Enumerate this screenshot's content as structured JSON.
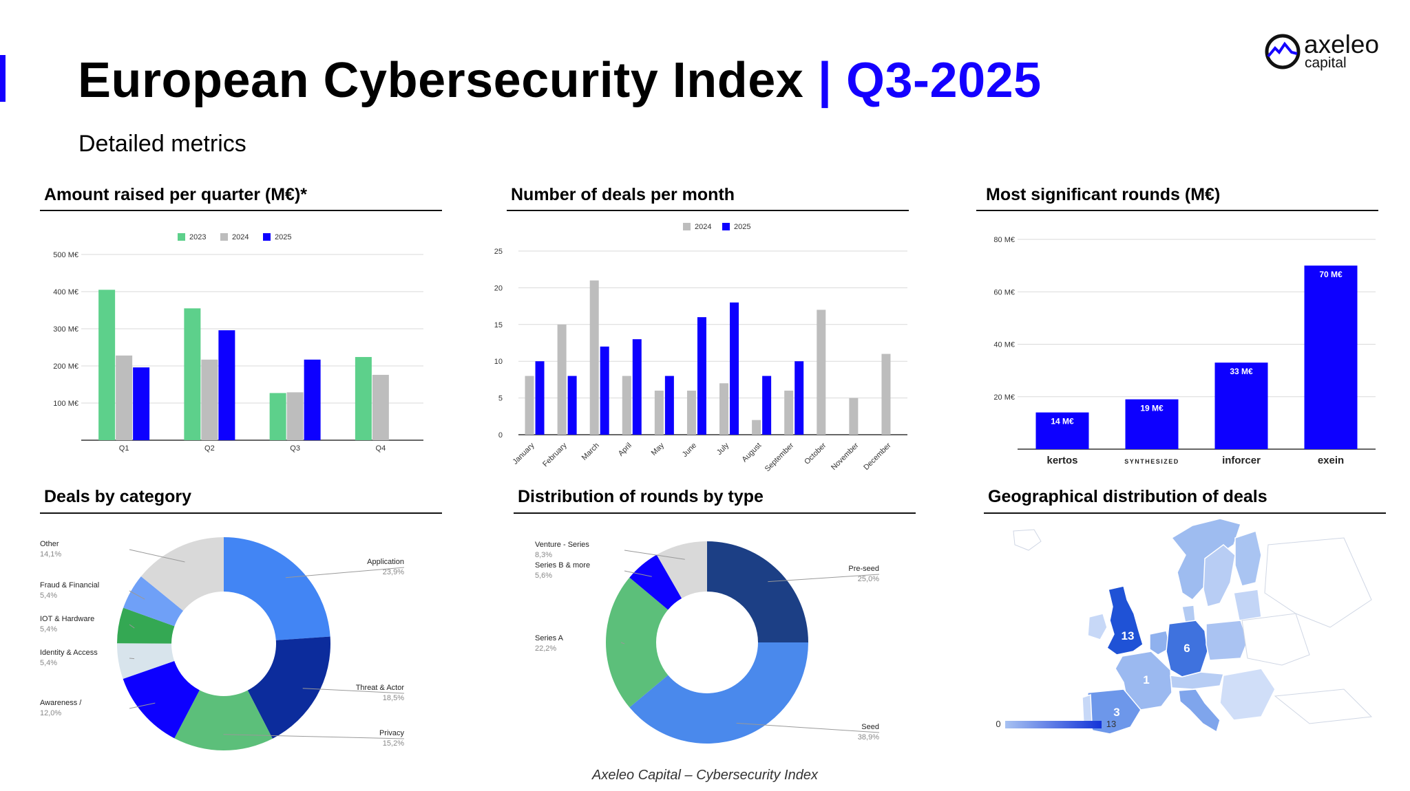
{
  "header": {
    "title_main": "European Cybersecurity Index",
    "title_sep": " | ",
    "title_period": "Q3-2025",
    "subtitle": "Detailed metrics"
  },
  "logo": {
    "brand": "axeleo",
    "sub": "capital"
  },
  "panels": {
    "amount": "Amount raised per quarter (M€)*",
    "deals": "Number of deals per month",
    "rounds": "Most significant rounds (M€)",
    "category": "Deals by category",
    "type": "Distribution of rounds by type",
    "geo": "Geographical distribution of deals"
  },
  "colors": {
    "accent": "#1400ff",
    "green": "#5dd08b",
    "grey": "#bdbdbd",
    "blue": "#0d00ff"
  },
  "chart_data": [
    {
      "id": "amount",
      "type": "bar",
      "categories": [
        "Q1",
        "Q2",
        "Q3",
        "Q4"
      ],
      "series": [
        {
          "name": "2023",
          "color": "#5dd08b",
          "values": [
            405,
            355,
            127,
            224
          ]
        },
        {
          "name": "2024",
          "color": "#bdbdbd",
          "values": [
            228,
            217,
            129,
            176
          ]
        },
        {
          "name": "2025",
          "color": "#0d00ff",
          "values": [
            196,
            296,
            217,
            null
          ]
        }
      ],
      "ylim": [
        0,
        500
      ],
      "yticks": [
        100,
        200,
        300,
        400,
        500
      ],
      "ytick_labels": [
        "100 M€",
        "200 M€",
        "300 M€",
        "400 M€",
        "500 M€"
      ],
      "legend": "top-center"
    },
    {
      "id": "deals",
      "type": "bar",
      "categories": [
        "January",
        "February",
        "March",
        "April",
        "May",
        "June",
        "July",
        "August",
        "September",
        "October",
        "November",
        "December"
      ],
      "series": [
        {
          "name": "2024",
          "color": "#bdbdbd",
          "values": [
            8,
            15,
            21,
            8,
            6,
            6,
            7,
            2,
            6,
            17,
            5,
            11
          ]
        },
        {
          "name": "2025",
          "color": "#0d00ff",
          "values": [
            10,
            8,
            12,
            13,
            8,
            16,
            18,
            8,
            10,
            null,
            null,
            null
          ]
        }
      ],
      "ylim": [
        0,
        25
      ],
      "yticks": [
        0,
        5,
        10,
        15,
        20,
        25
      ],
      "ytick_labels": [
        "0",
        "5",
        "10",
        "15",
        "20",
        "25"
      ],
      "legend": "top-center"
    },
    {
      "id": "rounds",
      "type": "bar",
      "categories": [
        "kertos",
        "SYNTHESIZED",
        "inforcer",
        "exein"
      ],
      "values": [
        14,
        19,
        33,
        70
      ],
      "value_labels": [
        "14 M€",
        "19 M€",
        "33 M€",
        "70 M€"
      ],
      "color": "#0d00ff",
      "ylim": [
        0,
        80
      ],
      "yticks": [
        20,
        40,
        60,
        80
      ],
      "ytick_labels": [
        "20 M€",
        "40 M€",
        "60 M€",
        "80 M€"
      ]
    },
    {
      "id": "category",
      "type": "pie",
      "donut": true,
      "slices": [
        {
          "label": "Application",
          "value": 23.9,
          "pct": "23,9%",
          "color": "#4285f4"
        },
        {
          "label": "Threat & Actor",
          "value": 18.5,
          "pct": "18,5%",
          "color": "#0c2c9c"
        },
        {
          "label": "Privacy",
          "value": 15.2,
          "pct": "15,2%",
          "color": "#5cbf7a"
        },
        {
          "label": "Awareness /",
          "value": 12.0,
          "pct": "12,0%",
          "color": "#0d00ff"
        },
        {
          "label": "Identity & Access",
          "value": 5.4,
          "pct": "5,4%",
          "color": "#d8e4ec"
        },
        {
          "label": "IOT & Hardware",
          "value": 5.4,
          "pct": "5,4%",
          "color": "#34a853"
        },
        {
          "label": "Fraud & Financial",
          "value": 5.4,
          "pct": "5,4%",
          "color": "#6fa0f7"
        },
        {
          "label": "Other",
          "value": 14.1,
          "pct": "14,1%",
          "color": "#d9d9d9"
        }
      ]
    },
    {
      "id": "type",
      "type": "pie",
      "donut": true,
      "slices": [
        {
          "label": "Pre-seed",
          "value": 25.0,
          "pct": "25,0%",
          "color": "#1c3f85"
        },
        {
          "label": "Seed",
          "value": 38.9,
          "pct": "38,9%",
          "color": "#4a89ec"
        },
        {
          "label": "Series A",
          "value": 22.2,
          "pct": "22,2%",
          "color": "#5cbf7a"
        },
        {
          "label": "Series B & more",
          "value": 5.6,
          "pct": "5,6%",
          "color": "#0d00ff"
        },
        {
          "label": "Venture - Series",
          "value": 8.3,
          "pct": "8,3%",
          "color": "#d9d9d9"
        }
      ]
    },
    {
      "id": "geo",
      "type": "map",
      "labels": [
        {
          "region": "United Kingdom",
          "value": 13
        },
        {
          "region": "Germany",
          "value": 6
        },
        {
          "region": "France",
          "value": 1
        },
        {
          "region": "Spain",
          "value": 3
        }
      ],
      "scale_min": 0,
      "scale_max": 13
    }
  ],
  "footer": "Axeleo Capital – Cybersecurity Index"
}
